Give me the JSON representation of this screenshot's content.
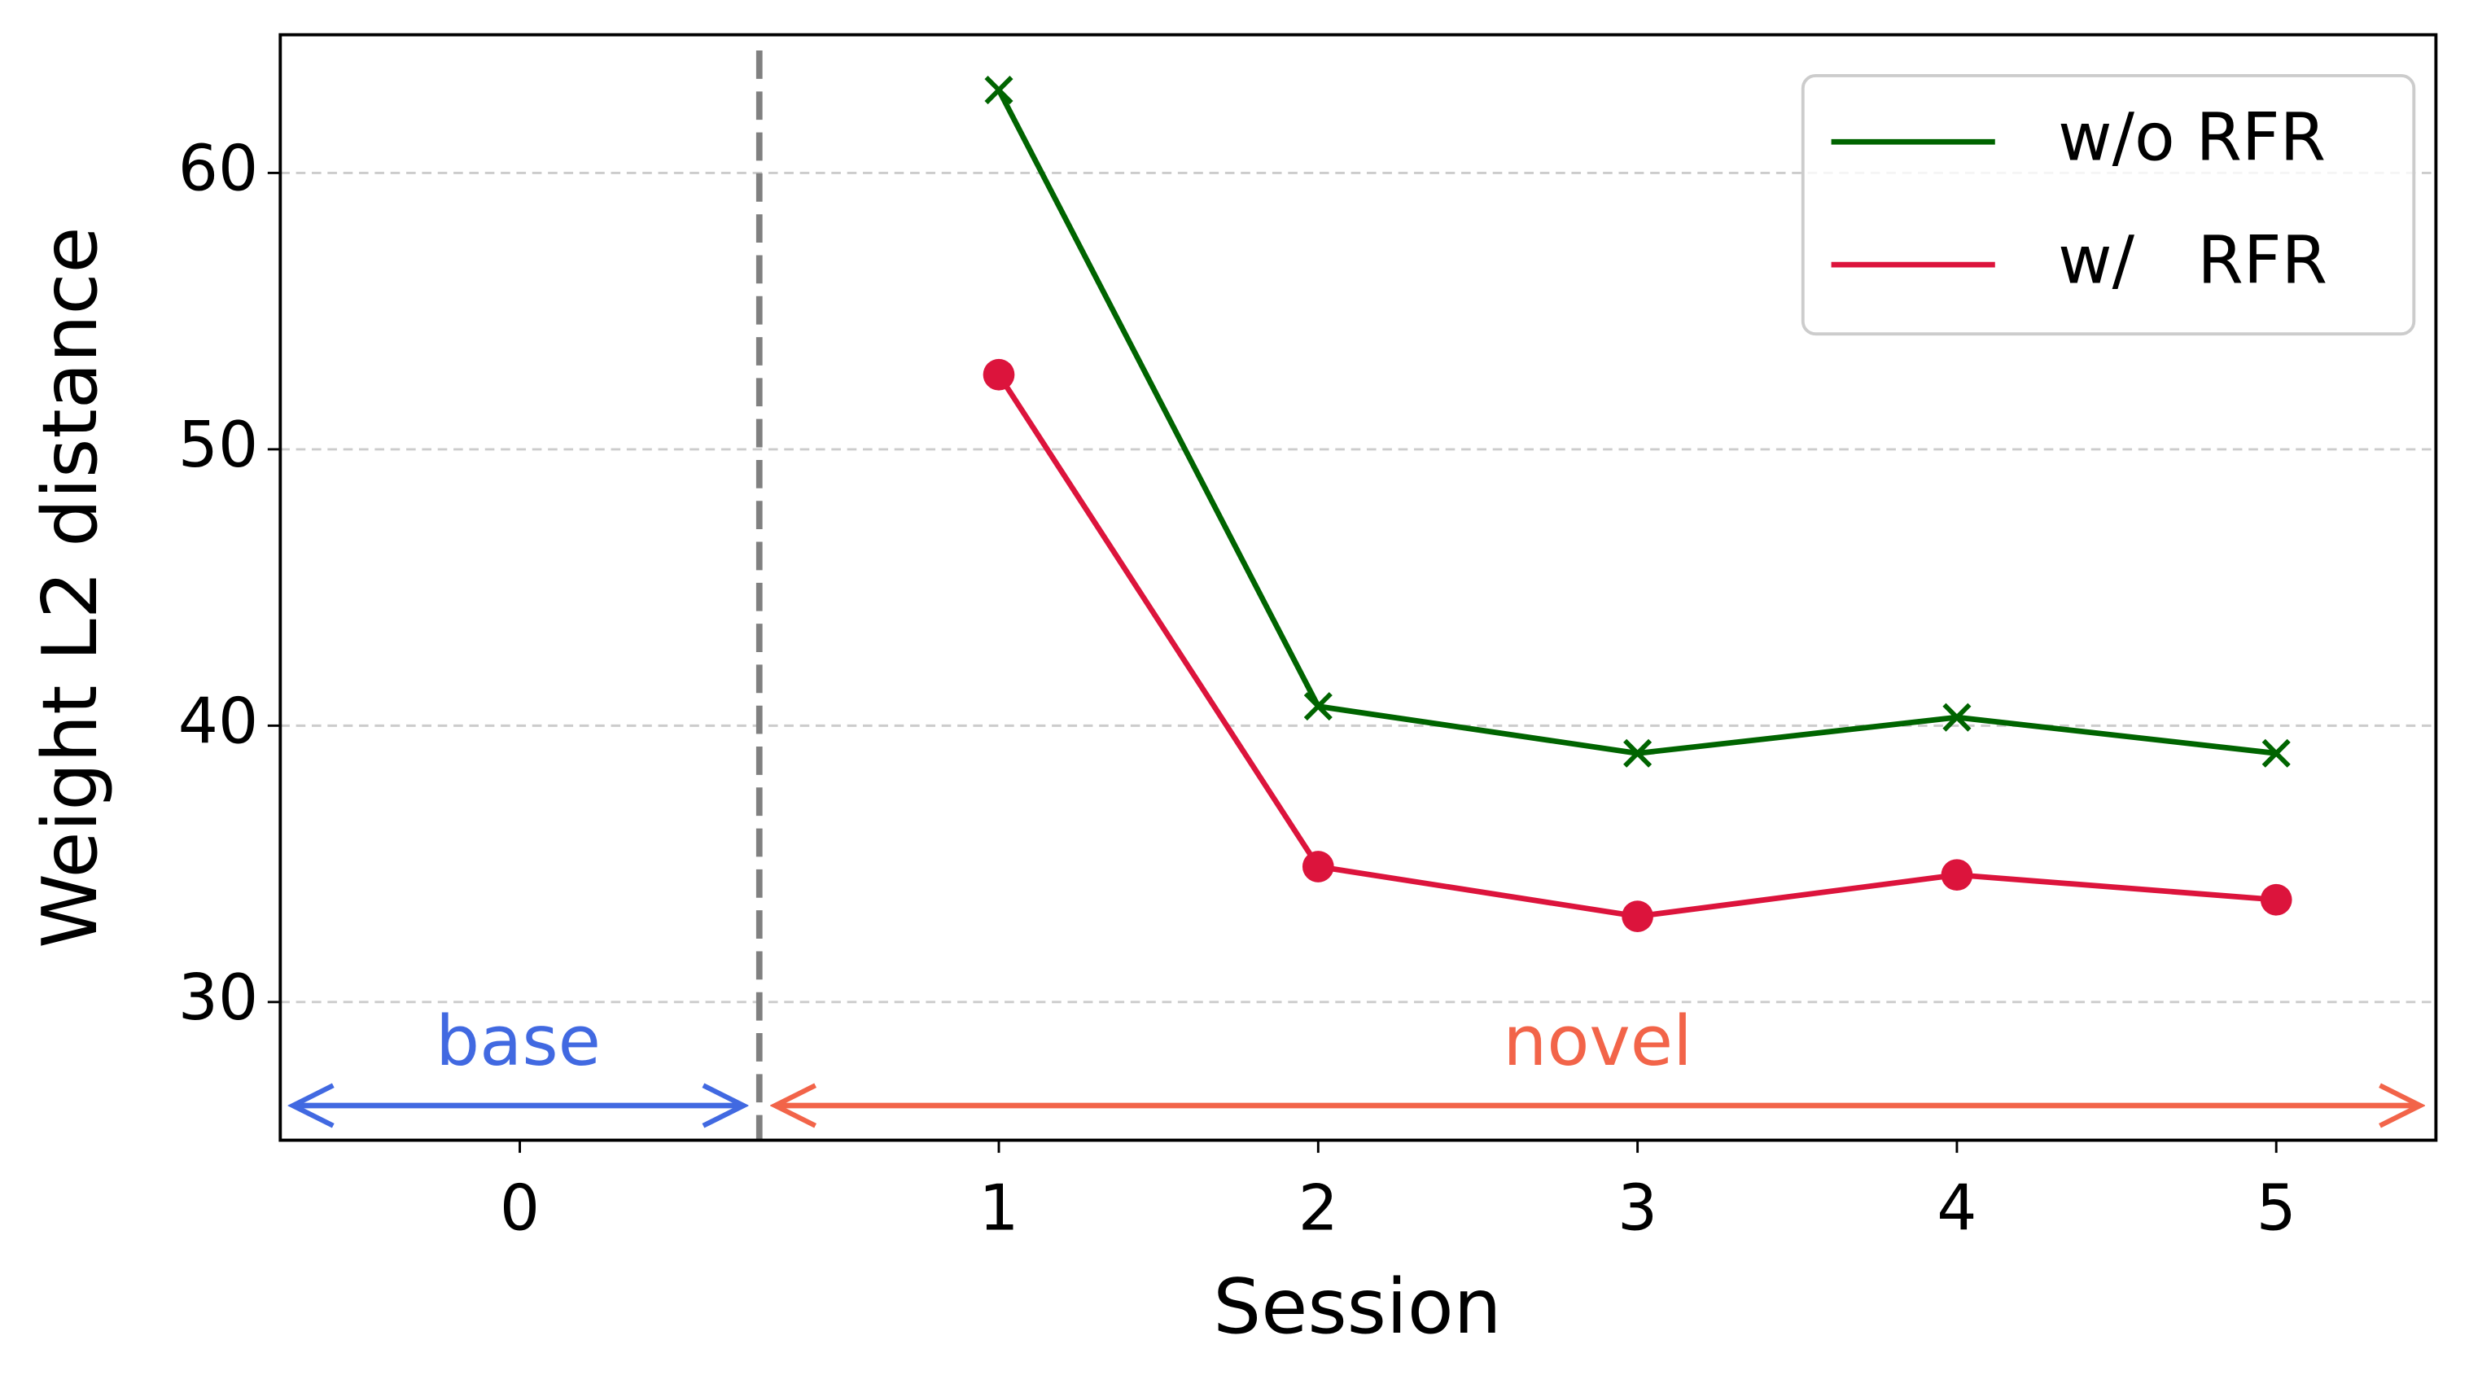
{
  "chart_data": {
    "type": "line",
    "xlabel": "Session",
    "ylabel": "Weight L2 distance",
    "xlim": [
      -1.25,
      5.5
    ],
    "xticks": [
      {
        "value": -0.5,
        "label": "0"
      },
      1,
      2,
      3,
      4,
      5
    ],
    "ylim": [
      25,
      65
    ],
    "yticks": [
      30,
      40,
      50,
      60
    ],
    "grid": true,
    "legend": "upper right",
    "x": [
      1,
      2,
      3,
      4,
      5
    ],
    "series": [
      {
        "name": "w/o RFR",
        "color": "#006400",
        "marker": "x",
        "values": [
          63,
          40.7,
          39,
          40.3,
          39
        ]
      },
      {
        "name": "w/   RFR",
        "color": "#dc143c",
        "marker": "o",
        "values": [
          52.7,
          34.9,
          33.1,
          34.6,
          33.7
        ]
      }
    ],
    "boundary_x": 0.25,
    "annotations": [
      {
        "text": "base",
        "color": "#4169e1"
      },
      {
        "text": "novel",
        "color": "#f26449"
      }
    ]
  }
}
